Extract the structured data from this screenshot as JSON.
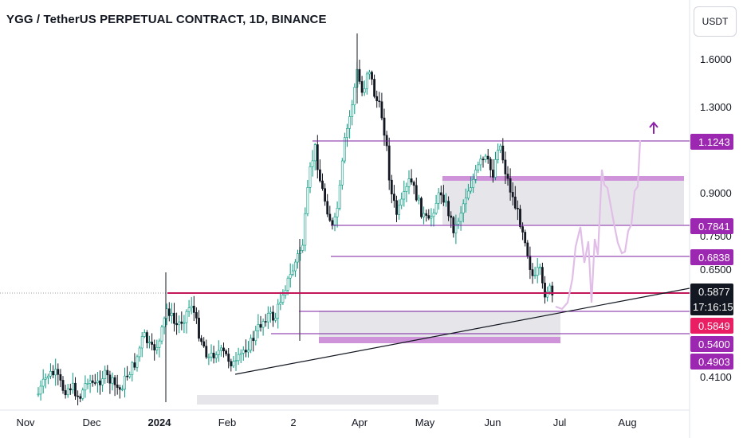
{
  "title": "YGG / TetherUS PERPETUAL CONTRACT, 1D, BINANCE",
  "currency_button": "USDT",
  "colors": {
    "up": "#089981",
    "down": "#131722",
    "candle_fill_up": "#ffffff",
    "level_line": "#7b1fa2",
    "red_line": "#c2185b",
    "zone_fill": "#e1e2e6",
    "zone_band": "#ce93d8",
    "projection": "#e1bee7",
    "trendline": "#131722",
    "arrow": "#8e24aa",
    "tag_purple": "#9c27b0",
    "tag_pink": "#e91e63",
    "tag_dark": "#131722"
  },
  "chart_data": {
    "type": "candlestick",
    "title": "YGG / TetherUS PERPETUAL CONTRACT, 1D, BINANCE",
    "y_axis_scale": "log",
    "y_ticks": [
      "1.6000",
      "1.3000",
      "0.9000",
      "0.7500",
      "0.6500",
      "0.4100"
    ],
    "x_ticks": [
      "Nov",
      "Dec",
      "2024",
      "Feb",
      "2",
      "Apr",
      "May",
      "Jun",
      "Jul",
      "Aug"
    ],
    "price_levels": [
      1.1243,
      0.7841,
      0.6838,
      0.5849,
      0.54,
      0.4903
    ],
    "price_tags": [
      {
        "label": "1.1243",
        "color": "purple"
      },
      {
        "label": "0.7841",
        "color": "purple"
      },
      {
        "label": "0.6838",
        "color": "purple"
      },
      {
        "label": "0.5877",
        "sub": "17:16:15",
        "color": "dark"
      },
      {
        "label": "0.5849",
        "color": "pink"
      },
      {
        "label": "0.5400",
        "color": "purple"
      },
      {
        "label": "0.4903",
        "color": "purple"
      }
    ],
    "last_price": "0.5877",
    "countdown": "17:16:15",
    "grid": false,
    "legend": "none"
  }
}
